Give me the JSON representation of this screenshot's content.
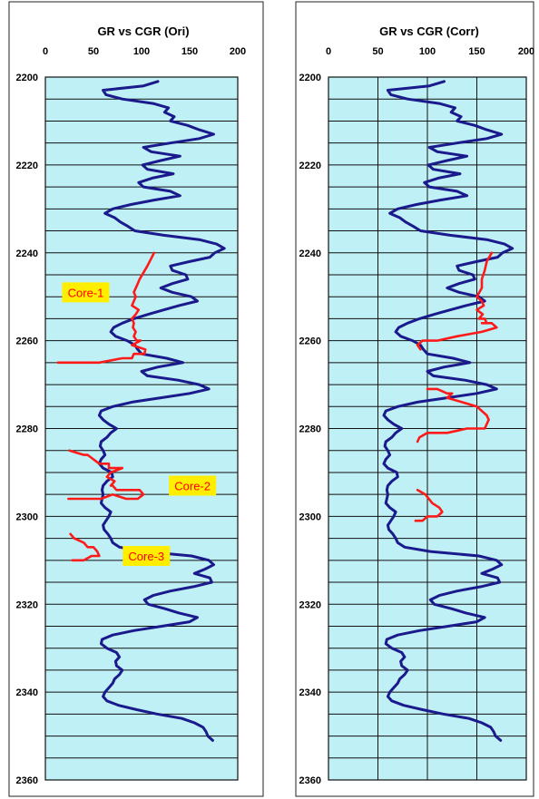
{
  "chart_data": [
    {
      "type": "line",
      "title": "GR vs CGR (Ori)",
      "xlabel": "",
      "ylabel": "",
      "xlim": [
        0,
        200
      ],
      "ylim": [
        2200,
        2360
      ],
      "y_inverted": true,
      "x_ticks": [
        "0",
        "50",
        "100",
        "150",
        "200"
      ],
      "y_ticks": [
        "2200",
        "2220",
        "2240",
        "2260",
        "2280",
        "2300",
        "2320",
        "2340",
        "2360"
      ],
      "vertical_grid": false,
      "horizontal_grid": true,
      "background_color": "#bff0f5",
      "series_colors": {
        "GR": "#1a1a8c",
        "CGR": "#ff1a1a"
      },
      "annotations": [
        {
          "text": "Core-1",
          "x": 42,
          "y": 2249
        },
        {
          "text": "Core-2",
          "x": 153,
          "y": 2293
        },
        {
          "text": "Core-3",
          "x": 105,
          "y": 2309
        }
      ],
      "series": [
        {
          "x": [
            117,
            102,
            60,
            63,
            80,
            112,
            128,
            124,
            134,
            130,
            148,
            160,
            175,
            160,
            130,
            102,
            110,
            140,
            120,
            101,
            106,
            133,
            111,
            97,
            102,
            130,
            140,
            113,
            89,
            70,
            62,
            72,
            78,
            86,
            93,
            123,
            160,
            178,
            186,
            176,
            171,
            150,
            130,
            132,
            146,
            148,
            132,
            120,
            132,
            152,
            158,
            139,
            123,
            107,
            92,
            80,
            71,
            68,
            73,
            85,
            93,
            96,
            100,
            126,
            143,
            117,
            100,
            106,
            138,
            160,
            170,
            150,
            120,
            90,
            70,
            58,
            56,
            60,
            66,
            74,
            68,
            64,
            58,
            57,
            60,
            62,
            58,
            56,
            60,
            69,
            70,
            64,
            60,
            59,
            60,
            59,
            58,
            62,
            68,
            66,
            63,
            60,
            61,
            65,
            68,
            70,
            77,
            103,
            152,
            170,
            175,
            166,
            155,
            171,
            173,
            154,
            130,
            112,
            103,
            107,
            124,
            139,
            158,
            150,
            121,
            92,
            70,
            59,
            58,
            64,
            74,
            77,
            73,
            74,
            80,
            77,
            72,
            70,
            66,
            62,
            60,
            64,
            76,
            95,
            116,
            142,
            155,
            164,
            167,
            169,
            174
          ],
          "y": [
            2201,
            2202,
            2203,
            2204,
            2205,
            2206,
            2207,
            2208,
            2209,
            2210,
            2211,
            2212,
            2213,
            2214,
            2215,
            2216,
            2217,
            2218,
            2219,
            2220,
            2221,
            2222,
            2223,
            2224,
            2225,
            2226,
            2227,
            2228,
            2229,
            2230,
            2231,
            2232,
            2233,
            2234,
            2235,
            2236,
            2237,
            2238,
            2239,
            2240,
            2241,
            2242,
            2243,
            2244,
            2245,
            2246,
            2247,
            2248,
            2249,
            2250,
            2251,
            2252,
            2253,
            2254,
            2255,
            2256,
            2257,
            2258,
            2259,
            2260,
            2261,
            2262,
            2263,
            2264,
            2265,
            2266,
            2267,
            2268,
            2269,
            2270,
            2271,
            2272,
            2273,
            2274,
            2275,
            2276,
            2277,
            2278,
            2279,
            2280,
            2281,
            2282,
            2283,
            2284,
            2285,
            2286,
            2287,
            2288,
            2289,
            2290,
            2291,
            2292,
            2293,
            2294,
            2295,
            2296,
            2297,
            2298,
            2299,
            2300,
            2301,
            2302,
            2303,
            2304,
            2305,
            2306,
            2307,
            2308,
            2309,
            2310,
            2311,
            2312,
            2313,
            2314,
            2315,
            2316,
            2317,
            2318,
            2319,
            2320,
            2321,
            2322,
            2323,
            2324,
            2325,
            2326,
            2327,
            2328,
            2329,
            2330,
            2331,
            2332,
            2333,
            2334,
            2335,
            2336,
            2337,
            2338,
            2339,
            2340,
            2341,
            2342,
            2343,
            2344,
            2345,
            2346,
            2347,
            2348,
            2349,
            2350,
            2351
          ]
        },
        {
          "x": [
            113,
            106,
            98,
            96,
            92,
            94,
            90,
            97,
            94,
            90,
            92,
            91,
            94,
            92,
            95,
            99,
            90,
            104,
            103,
            97,
            92,
            90,
            80,
            56,
            28,
            13
          ],
          "y": [
            2240,
            2243,
            2246,
            2247,
            2249,
            2250,
            2252,
            2253,
            2254,
            2255,
            2256,
            2257,
            2258,
            2259,
            2260,
            2260,
            2261,
            2262,
            2263,
            2263,
            2263,
            2264,
            2264,
            2265,
            2265,
            2265
          ]
        },
        {
          "x": [
            25,
            40,
            44,
            56,
            66,
            66,
            80,
            68,
            64,
            72,
            68,
            70,
            74,
            98,
            102,
            96,
            84,
            70,
            58,
            30,
            24
          ],
          "y": [
            2285,
            2286,
            2286,
            2288,
            2288,
            2289,
            2289,
            2290,
            2291,
            2292,
            2293,
            2293,
            2294,
            2294,
            2295,
            2296,
            2296,
            2295,
            2296,
            2296,
            2296
          ]
        },
        {
          "x": [
            26,
            30,
            40,
            44,
            50,
            54,
            56,
            48,
            40,
            28
          ],
          "y": [
            2304,
            2305,
            2306,
            2307,
            2307,
            2308,
            2309,
            2309,
            2310,
            2310
          ]
        }
      ]
    },
    {
      "type": "line",
      "title": "GR vs CGR (Corr)",
      "xlabel": "",
      "ylabel": "",
      "xlim": [
        0,
        200
      ],
      "ylim": [
        2200,
        2360
      ],
      "y_inverted": true,
      "x_ticks": [
        "0",
        "50",
        "100",
        "150",
        "200"
      ],
      "y_ticks": [
        "2200",
        "2220",
        "2240",
        "2260",
        "2280",
        "2300",
        "2320",
        "2340",
        "2360"
      ],
      "vertical_grid": true,
      "horizontal_grid": true,
      "background_color": "#bff0f5",
      "series_colors": {
        "GR": "#1a1a8c",
        "CGR": "#ff1a1a"
      },
      "annotations": [],
      "series": [
        {
          "x": [
            117,
            102,
            60,
            63,
            80,
            112,
            128,
            124,
            134,
            130,
            148,
            160,
            175,
            160,
            130,
            102,
            110,
            140,
            120,
            101,
            106,
            133,
            111,
            97,
            102,
            130,
            140,
            113,
            89,
            70,
            62,
            72,
            78,
            86,
            93,
            123,
            160,
            178,
            186,
            176,
            171,
            150,
            130,
            132,
            146,
            148,
            132,
            120,
            132,
            152,
            158,
            139,
            123,
            107,
            92,
            80,
            71,
            68,
            73,
            85,
            93,
            96,
            100,
            126,
            143,
            117,
            100,
            106,
            138,
            160,
            170,
            150,
            120,
            90,
            70,
            58,
            56,
            60,
            66,
            74,
            68,
            64,
            58,
            57,
            60,
            62,
            58,
            56,
            60,
            69,
            70,
            64,
            60,
            59,
            60,
            59,
            58,
            62,
            68,
            66,
            63,
            60,
            61,
            65,
            68,
            70,
            77,
            103,
            152,
            170,
            175,
            166,
            155,
            171,
            173,
            154,
            130,
            112,
            103,
            107,
            124,
            139,
            158,
            150,
            121,
            92,
            70,
            59,
            58,
            64,
            74,
            77,
            73,
            74,
            80,
            77,
            72,
            70,
            66,
            62,
            60,
            64,
            76,
            95,
            116,
            142,
            155,
            164,
            167,
            169,
            174
          ],
          "y": [
            2201,
            2202,
            2203,
            2204,
            2205,
            2206,
            2207,
            2208,
            2209,
            2210,
            2211,
            2212,
            2213,
            2214,
            2215,
            2216,
            2217,
            2218,
            2219,
            2220,
            2221,
            2222,
            2223,
            2224,
            2225,
            2226,
            2227,
            2228,
            2229,
            2230,
            2231,
            2232,
            2233,
            2234,
            2235,
            2236,
            2237,
            2238,
            2239,
            2240,
            2241,
            2242,
            2243,
            2244,
            2245,
            2246,
            2247,
            2248,
            2249,
            2250,
            2251,
            2252,
            2253,
            2254,
            2255,
            2256,
            2257,
            2258,
            2259,
            2260,
            2261,
            2262,
            2263,
            2264,
            2265,
            2266,
            2267,
            2268,
            2269,
            2270,
            2271,
            2272,
            2273,
            2274,
            2275,
            2276,
            2277,
            2278,
            2279,
            2280,
            2281,
            2282,
            2283,
            2284,
            2285,
            2286,
            2287,
            2288,
            2289,
            2290,
            2291,
            2292,
            2293,
            2294,
            2295,
            2296,
            2297,
            2298,
            2299,
            2300,
            2301,
            2302,
            2303,
            2304,
            2305,
            2306,
            2307,
            2308,
            2309,
            2310,
            2311,
            2312,
            2313,
            2314,
            2315,
            2316,
            2317,
            2318,
            2319,
            2320,
            2321,
            2322,
            2323,
            2324,
            2325,
            2326,
            2327,
            2328,
            2329,
            2330,
            2331,
            2332,
            2333,
            2334,
            2335,
            2336,
            2337,
            2338,
            2339,
            2340,
            2341,
            2342,
            2343,
            2344,
            2345,
            2346,
            2347,
            2348,
            2349,
            2350,
            2351
          ]
        },
        {
          "x": [
            165,
            160,
            158,
            155,
            155,
            150,
            155,
            157,
            150,
            156,
            152,
            158,
            160,
            155,
            165,
            170,
            155,
            130,
            110,
            95,
            90,
            93
          ],
          "y": [
            2240,
            2242,
            2244,
            2246,
            2248,
            2250,
            2251,
            2252,
            2253,
            2254,
            2255,
            2255,
            2256,
            2256,
            2256,
            2257,
            2258,
            2259,
            2260,
            2260,
            2261,
            2262
          ]
        },
        {
          "x": [
            100,
            110,
            120,
            125,
            120,
            135,
            150,
            155,
            160,
            162,
            160,
            158,
            140,
            120,
            100,
            92,
            90
          ],
          "y": [
            2271,
            2271,
            2272,
            2272,
            2273,
            2274,
            2275,
            2276,
            2277,
            2278,
            2279,
            2280,
            2280,
            2281,
            2281,
            2282,
            2283
          ]
        },
        {
          "x": [
            90,
            98,
            105,
            112,
            115,
            110,
            100,
            95,
            88
          ],
          "y": [
            2294,
            2295,
            2297,
            2298,
            2299,
            2300,
            2300,
            2301,
            2301
          ]
        }
      ]
    }
  ]
}
